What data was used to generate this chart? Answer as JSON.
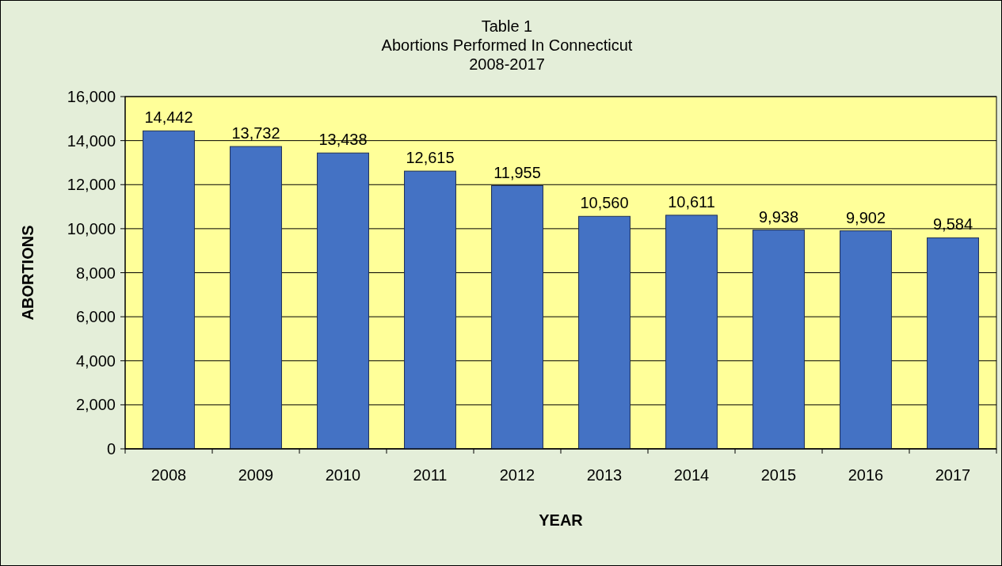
{
  "chart_data": {
    "type": "bar",
    "title": "Table 1\nAbortions Performed In Connecticut\n2008-2017",
    "xlabel": "YEAR",
    "ylabel": "ABORTIONS",
    "categories": [
      "2008",
      "2009",
      "2010",
      "2011",
      "2012",
      "2013",
      "2014",
      "2015",
      "2016",
      "2017"
    ],
    "values": [
      14442,
      13732,
      13438,
      12615,
      11955,
      10560,
      10611,
      9938,
      9902,
      9584
    ],
    "value_labels": [
      "14,442",
      "13,732",
      "13,438",
      "12,615",
      "11,955",
      "10,560",
      "10,611",
      "9,938",
      "9,902",
      "9,584"
    ],
    "color": "#4472c4",
    "ylim": [
      0,
      16000
    ],
    "yticks": [
      0,
      {
        "value": 2000,
        "label": "2,000"
      },
      {
        "value": 4000,
        "label": "4,000"
      },
      {
        "value": 6000,
        "label": "6,000"
      },
      {
        "value": 8000,
        "label": "8,000"
      },
      {
        "value": 10000,
        "label": "10,000"
      },
      {
        "value": 12000,
        "label": "12,000"
      },
      {
        "value": 14000,
        "label": "14,000"
      },
      {
        "value": 16000,
        "label": "16,000"
      }
    ],
    "grid": "y"
  }
}
